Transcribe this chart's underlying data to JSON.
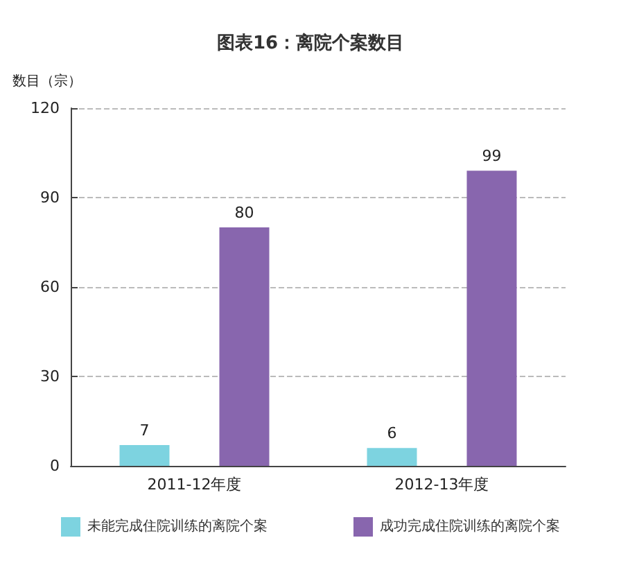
{
  "chart_data": {
    "type": "bar",
    "title": "图表16：离院个案数目",
    "ylabel": "数目（宗）",
    "categories": [
      "2011-12年度",
      "2012-13年度"
    ],
    "series": [
      {
        "name": "未能完成住院训练的离院个案",
        "color": "#7dd3e0",
        "values": [
          7,
          6
        ]
      },
      {
        "name": "成功完成住院训练的离院个案",
        "color": "#8866ae",
        "values": [
          80,
          99
        ]
      }
    ],
    "ylim": [
      0,
      120
    ],
    "yticks": [
      0,
      30,
      60,
      90,
      120
    ],
    "grid": "y",
    "legend": "bottom",
    "data_labels": true
  }
}
